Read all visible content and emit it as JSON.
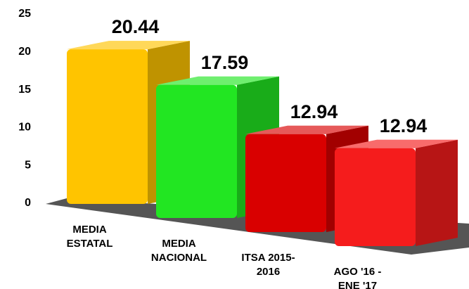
{
  "chart_data": {
    "type": "bar3d",
    "categories": [
      "MEDIA\nESTATAL",
      "MEDIA\nNACIONAL",
      "ITSA 2015-\n2016",
      "AGO '16 -\nENE '17"
    ],
    "values": [
      20.44,
      17.59,
      12.94,
      12.94
    ],
    "colors": [
      "#ffc400",
      "#22e622",
      "#d90000",
      "#f51c1c"
    ],
    "ylim": [
      0,
      25
    ],
    "yticks": [
      0,
      5,
      10,
      15,
      20,
      25
    ],
    "grid": false
  }
}
